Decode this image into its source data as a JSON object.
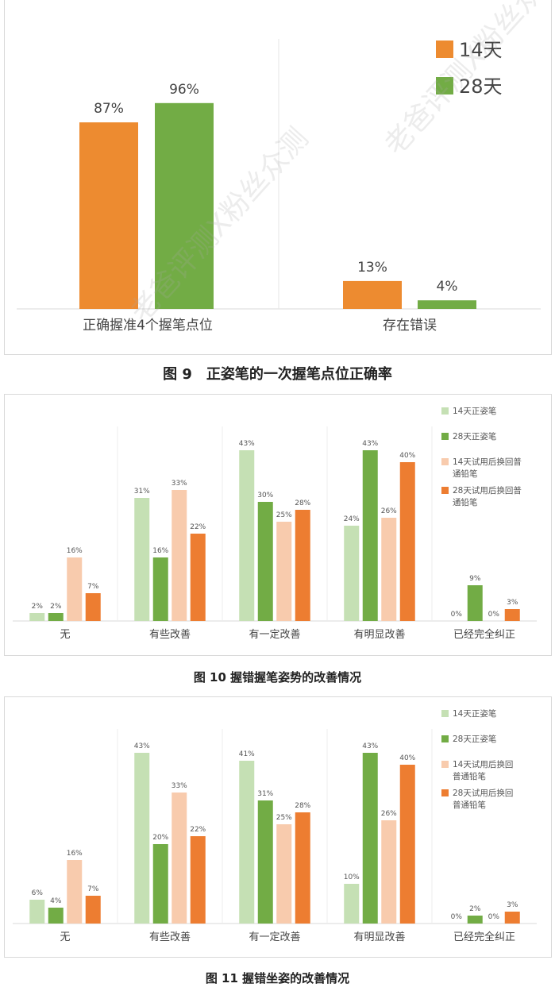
{
  "figures": [
    {
      "caption": "图 9　正姿笔的一次握笔点位正确率"
    },
    {
      "caption": "图 10 握错握笔姿势的改善情况"
    },
    {
      "caption": "图 11  握错坐姿的改善情况"
    }
  ],
  "watermark": "老爸评测X粉丝众测",
  "colors": {
    "orange": "#ED8B30",
    "green": "#72AC45",
    "light_green": "#C5E0B4",
    "peach": "#F8CBAD",
    "dark_orange": "#ED7D31"
  },
  "chart_data": [
    {
      "type": "bar",
      "title": "",
      "categories": [
        "正确握准4个握笔点位",
        "存在错误"
      ],
      "series": [
        {
          "name": "14天",
          "values": [
            87,
            13
          ],
          "color": "#ED8B30"
        },
        {
          "name": "28天",
          "values": [
            96,
            4
          ],
          "color": "#72AC45"
        }
      ],
      "value_labels": [
        [
          "87%",
          "13%"
        ],
        [
          "96%",
          "4%"
        ]
      ],
      "ylim": [
        0,
        100
      ],
      "legend": "top-right",
      "grid": false
    },
    {
      "type": "bar",
      "title": "",
      "categories": [
        "无",
        "有些改善",
        "有一定改善",
        "有明显改善",
        "已经完全纠正"
      ],
      "series": [
        {
          "name": "14天正姿笔",
          "values": [
            2,
            31,
            43,
            24,
            0
          ],
          "color": "#C5E0B4"
        },
        {
          "name": "28天正姿笔",
          "values": [
            2,
            16,
            30,
            43,
            9
          ],
          "color": "#72AC45"
        },
        {
          "name": "14天试用后换回普通铅笔",
          "values": [
            16,
            33,
            25,
            26,
            0
          ],
          "color": "#F8CBAD"
        },
        {
          "name": "28天试用后换回普通铅笔",
          "values": [
            7,
            22,
            28,
            40,
            3
          ],
          "color": "#ED7D31"
        }
      ],
      "legend_lines": [
        [
          "14天正姿笔"
        ],
        [
          "28天正姿笔"
        ],
        [
          "14天试用后换回普",
          "通铅笔"
        ],
        [
          "28天试用后换回普",
          "通铅笔"
        ]
      ],
      "ylim": [
        0,
        45
      ],
      "legend": "right",
      "grid": false
    },
    {
      "type": "bar",
      "title": "",
      "categories": [
        "无",
        "有些改善",
        "有一定改善",
        "有明显改善",
        "已经完全纠正"
      ],
      "series": [
        {
          "name": "14天正姿笔",
          "values": [
            6,
            43,
            41,
            10,
            0
          ],
          "color": "#C5E0B4"
        },
        {
          "name": "28天正姿笔",
          "values": [
            4,
            20,
            31,
            43,
            2
          ],
          "color": "#72AC45"
        },
        {
          "name": "14天试用后换回普通铅笔",
          "values": [
            16,
            33,
            25,
            26,
            0
          ],
          "color": "#F8CBAD"
        },
        {
          "name": "28天试用后换回普通铅笔",
          "values": [
            7,
            22,
            28,
            40,
            3
          ],
          "color": "#ED7D31"
        }
      ],
      "legend_lines": [
        [
          "14天正姿笔"
        ],
        [
          "28天正姿笔"
        ],
        [
          "14天试用后换回",
          "普通铅笔"
        ],
        [
          "28天试用后换回",
          "普通铅笔"
        ]
      ],
      "ylim": [
        0,
        45
      ],
      "legend": "right",
      "grid": false
    }
  ]
}
